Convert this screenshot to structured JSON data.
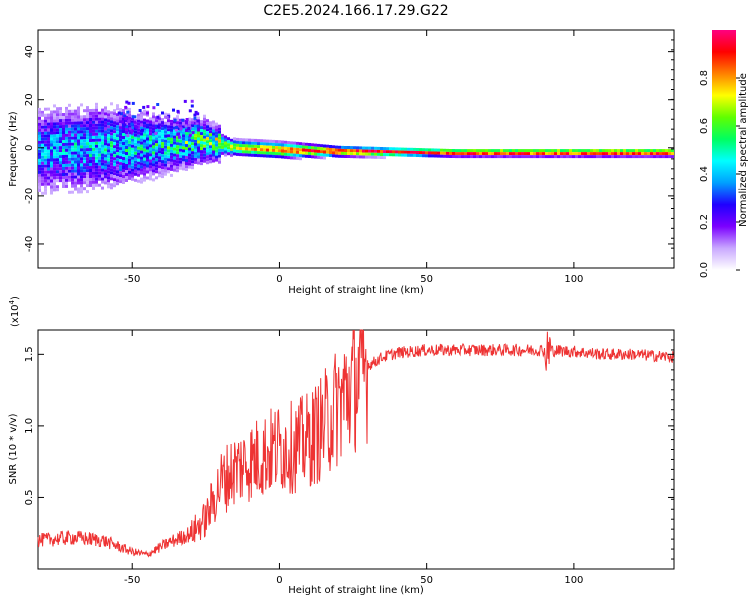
{
  "title": "C2E5.2024.166.17.29.G22",
  "chart_data": [
    {
      "type": "heatmap",
      "xlabel": "Height of straight line (km)",
      "ylabel": "Frequency (Hz)",
      "xlim": [
        -82,
        134
      ],
      "ylim": [
        -50,
        49
      ],
      "xticks": [
        -50,
        0,
        50,
        100
      ],
      "yticks": [
        -40,
        -20,
        0,
        20,
        40
      ],
      "colorbar": {
        "label": "Normalized spectral amplitude",
        "range": [
          0,
          1
        ],
        "ticks": [
          "0.0",
          "0.2",
          "0.4",
          "0.6",
          "0.8"
        ],
        "colors": [
          "#ffffff",
          "#c9a8ff",
          "#7b00ff",
          "#1f00ff",
          "#00a0ff",
          "#00ffff",
          "#00ff60",
          "#60ff00",
          "#ffff00",
          "#ff8000",
          "#ff0000",
          "#ff0080"
        ]
      },
      "ridge": [
        {
          "x": -82,
          "f": -1,
          "width": 10,
          "amp": 0.35
        },
        {
          "x": -60,
          "f": 0,
          "width": 10,
          "amp": 0.4
        },
        {
          "x": -40,
          "f": 1,
          "width": 7,
          "amp": 0.45
        },
        {
          "x": -25,
          "f": 3,
          "width": 5,
          "amp": 0.55
        },
        {
          "x": -15,
          "f": 0,
          "width": 3,
          "amp": 0.7
        },
        {
          "x": 0,
          "f": -1,
          "width": 3,
          "amp": 0.85
        },
        {
          "x": 20,
          "f": -1.5,
          "width": 2,
          "amp": 0.9
        },
        {
          "x": 60,
          "f": -2,
          "width": 1.5,
          "amp": 0.95
        },
        {
          "x": 100,
          "f": -2,
          "width": 1.5,
          "amp": 0.95
        },
        {
          "x": 134,
          "f": -2,
          "width": 1.5,
          "amp": 0.95
        }
      ]
    },
    {
      "type": "line",
      "xlabel": "Height of straight line (km)",
      "ylabel": "SNR (10 * v/v)",
      "multiplier": "(x10",
      "multiplier_exp": "4",
      "multiplier_close": ")",
      "xlim": [
        -82,
        134
      ],
      "ylim": [
        0,
        1.67
      ],
      "xticks": [
        -50,
        0,
        50,
        100
      ],
      "yticks": [
        "0.5",
        "1.0",
        "1.5"
      ],
      "color": "#ee3333",
      "series": [
        {
          "x": -82,
          "y": 0.2
        },
        {
          "x": -70,
          "y": 0.22
        },
        {
          "x": -60,
          "y": 0.2
        },
        {
          "x": -50,
          "y": 0.12
        },
        {
          "x": -45,
          "y": 0.1
        },
        {
          "x": -38,
          "y": 0.18
        },
        {
          "x": -30,
          "y": 0.25
        },
        {
          "x": -25,
          "y": 0.35
        },
        {
          "x": -20,
          "y": 0.6
        },
        {
          "x": -15,
          "y": 0.7
        },
        {
          "x": -10,
          "y": 0.75
        },
        {
          "x": -5,
          "y": 0.8
        },
        {
          "x": 0,
          "y": 0.85
        },
        {
          "x": 5,
          "y": 0.85
        },
        {
          "x": 10,
          "y": 0.9
        },
        {
          "x": 15,
          "y": 1.0
        },
        {
          "x": 20,
          "y": 1.15
        },
        {
          "x": 25,
          "y": 1.3
        },
        {
          "x": 30,
          "y": 1.42
        },
        {
          "x": 35,
          "y": 1.48
        },
        {
          "x": 40,
          "y": 1.51
        },
        {
          "x": 50,
          "y": 1.53
        },
        {
          "x": 70,
          "y": 1.53
        },
        {
          "x": 90,
          "y": 1.53
        },
        {
          "x": 100,
          "y": 1.52
        },
        {
          "x": 110,
          "y": 1.5
        },
        {
          "x": 120,
          "y": 1.5
        },
        {
          "x": 134,
          "y": 1.48
        }
      ]
    }
  ]
}
